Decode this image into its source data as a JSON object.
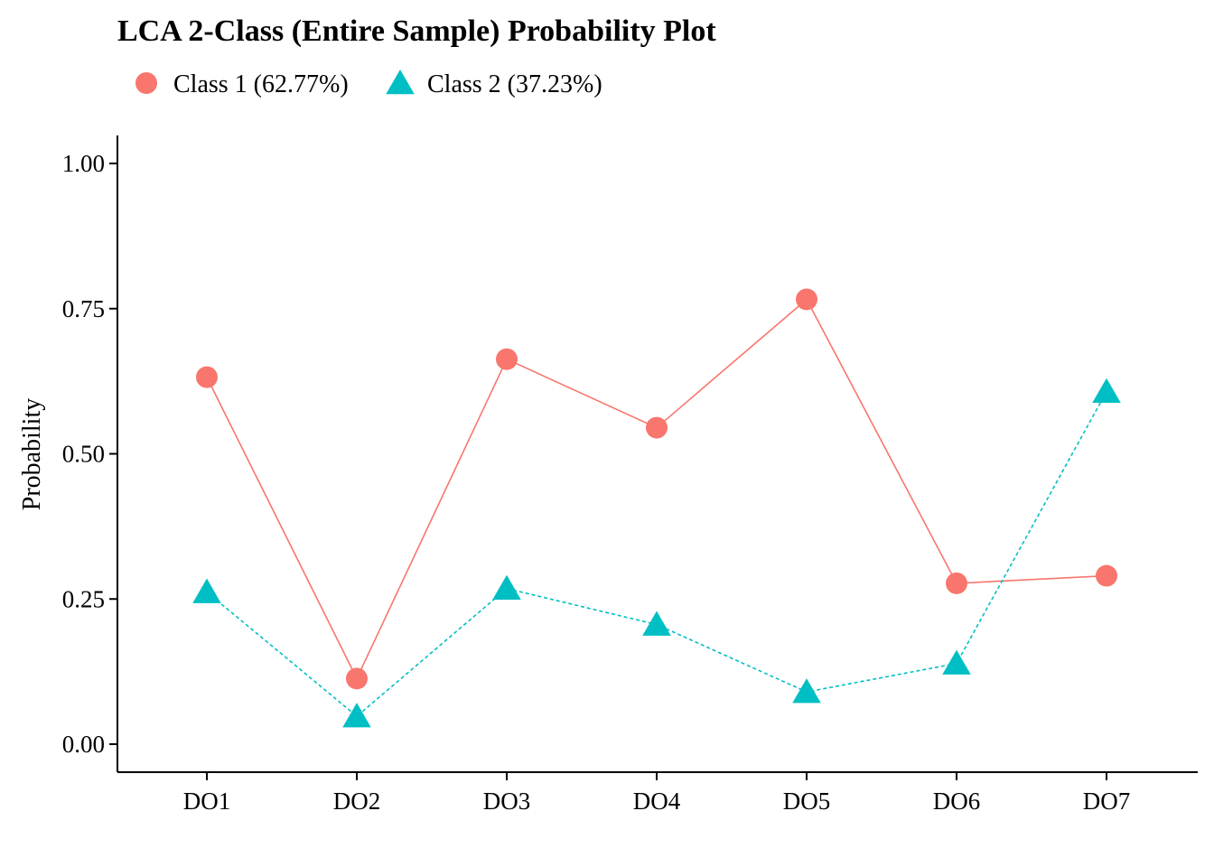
{
  "chart_data": {
    "type": "line",
    "title": "LCA 2-Class (Entire Sample) Probability Plot",
    "xlabel": "",
    "ylabel": "Probability",
    "categories": [
      "DO1",
      "DO2",
      "DO3",
      "DO4",
      "DO5",
      "DO6",
      "DO7"
    ],
    "ylim": [
      0,
      1
    ],
    "yticks": [
      "0.00",
      "0.25",
      "0.50",
      "0.75",
      "1.00"
    ],
    "ytick_values": [
      0,
      0.25,
      0.5,
      0.75,
      1.0
    ],
    "grid": false,
    "legend_position": "top-left",
    "series": [
      {
        "name": "Class 1 (62.77%)",
        "marker": "circle",
        "line_style": "solid",
        "color": "#F8766D",
        "values": [
          0.632,
          0.113,
          0.663,
          0.545,
          0.766,
          0.277,
          0.29
        ]
      },
      {
        "name": "Class 2 (37.23%)",
        "marker": "triangle",
        "line_style": "dotted",
        "color": "#00BFC4",
        "values": [
          0.262,
          0.048,
          0.268,
          0.206,
          0.09,
          0.139,
          0.607
        ]
      }
    ]
  }
}
